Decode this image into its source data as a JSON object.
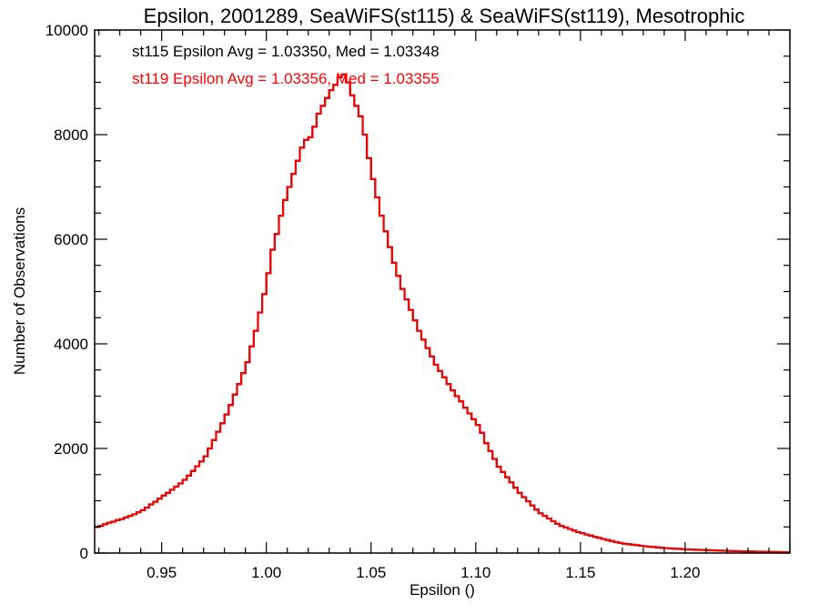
{
  "chart_data": {
    "type": "line",
    "style": "step-histogram",
    "title": "Epsilon, 2001289, SeaWiFS(st115) & SeaWiFS(st119), Mesotrophic",
    "xlabel": "Epsilon ()",
    "ylabel": "Number of Observations",
    "xlim": [
      0.918,
      1.25
    ],
    "ylim": [
      0,
      10000
    ],
    "xticks": [
      "0.95",
      "1.00",
      "1.05",
      "1.10",
      "1.15",
      "1.20"
    ],
    "yticks": [
      "0",
      "2000",
      "4000",
      "6000",
      "8000",
      "10000"
    ],
    "grid": false,
    "annotations": [
      {
        "text": "st115 Epsilon Avg = 1.03350, Med = 1.03348",
        "color": "#000000"
      },
      {
        "text": "st119 Epsilon Avg = 1.03356, Med = 1.03355",
        "color": "#ff0000"
      }
    ],
    "bin_start": 0.918,
    "bin_width": 0.002,
    "series": [
      {
        "name": "st115",
        "color": "#000000",
        "values": [
          500,
          520,
          550,
          580,
          600,
          630,
          650,
          680,
          710,
          740,
          780,
          820,
          870,
          930,
          980,
          1040,
          1100,
          1150,
          1210,
          1270,
          1330,
          1400,
          1480,
          1570,
          1660,
          1750,
          1850,
          2000,
          2160,
          2320,
          2480,
          2650,
          2830,
          3030,
          3230,
          3440,
          3650,
          3950,
          4250,
          4600,
          4950,
          5350,
          5800,
          6100,
          6450,
          6750,
          7000,
          7250,
          7500,
          7750,
          7900,
          7950,
          8150,
          8400,
          8550,
          8700,
          8850,
          8950,
          9100,
          9150,
          9000,
          8750,
          8550,
          8350,
          8000,
          7550,
          7150,
          6800,
          6450,
          6150,
          5850,
          5550,
          5300,
          5050,
          4850,
          4650,
          4450,
          4250,
          4080,
          3920,
          3760,
          3600,
          3480,
          3360,
          3230,
          3110,
          3000,
          2900,
          2780,
          2670,
          2560,
          2450,
          2300,
          2100,
          1950,
          1800,
          1650,
          1550,
          1450,
          1350,
          1250,
          1150,
          1070,
          990,
          910,
          830,
          760,
          710,
          660,
          610,
          560,
          520,
          490,
          460,
          430,
          400,
          380,
          355,
          335,
          310,
          290,
          270,
          250,
          230,
          210,
          195,
          180,
          170,
          160,
          150,
          140,
          130,
          122,
          115,
          108,
          100,
          95,
          90,
          85,
          80,
          75,
          70,
          67,
          64,
          61,
          58,
          55,
          52,
          49,
          46,
          43,
          40,
          38,
          36,
          34,
          32,
          30,
          28,
          27,
          26,
          25,
          23,
          21,
          19,
          17,
          15
        ]
      },
      {
        "name": "st119",
        "color": "#ff0000",
        "values": [
          500,
          520,
          550,
          580,
          600,
          630,
          650,
          680,
          710,
          740,
          780,
          820,
          870,
          930,
          980,
          1040,
          1100,
          1150,
          1210,
          1270,
          1330,
          1400,
          1480,
          1570,
          1660,
          1750,
          1850,
          2000,
          2160,
          2320,
          2480,
          2650,
          2830,
          3030,
          3230,
          3440,
          3650,
          3950,
          4250,
          4600,
          4950,
          5350,
          5800,
          6100,
          6450,
          6750,
          7000,
          7250,
          7500,
          7750,
          7900,
          7950,
          8150,
          8400,
          8550,
          8700,
          8850,
          8950,
          9100,
          9150,
          9000,
          8750,
          8550,
          8350,
          8000,
          7550,
          7150,
          6800,
          6450,
          6150,
          5850,
          5550,
          5300,
          5050,
          4850,
          4650,
          4450,
          4250,
          4080,
          3920,
          3760,
          3600,
          3480,
          3360,
          3230,
          3110,
          3000,
          2900,
          2780,
          2670,
          2560,
          2450,
          2300,
          2100,
          1950,
          1800,
          1650,
          1550,
          1450,
          1350,
          1250,
          1150,
          1070,
          990,
          910,
          830,
          760,
          710,
          660,
          610,
          560,
          520,
          490,
          460,
          430,
          400,
          380,
          355,
          335,
          310,
          290,
          270,
          250,
          230,
          210,
          195,
          180,
          170,
          160,
          150,
          140,
          130,
          122,
          115,
          108,
          100,
          95,
          90,
          85,
          80,
          75,
          70,
          67,
          64,
          61,
          58,
          55,
          52,
          49,
          46,
          43,
          40,
          38,
          36,
          34,
          32,
          30,
          28,
          27,
          26,
          25,
          23,
          21,
          19,
          17,
          15
        ]
      }
    ]
  }
}
